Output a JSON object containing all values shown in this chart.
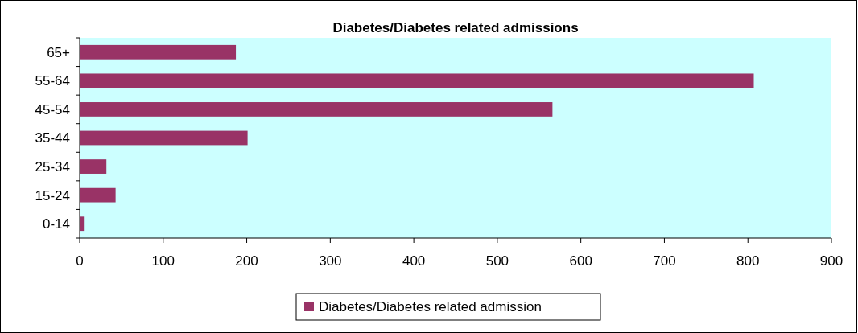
{
  "chart_data": {
    "type": "bar",
    "orientation": "horizontal",
    "title": "Diabetes/Diabetes related admissions",
    "categories": [
      "65+",
      "55-64",
      "45-54",
      "35-44",
      "25-34",
      "15-24",
      "0-14"
    ],
    "series": [
      {
        "name": "Diabetes/Diabetes related admission",
        "color": "#993366",
        "values": [
          187,
          807,
          566,
          201,
          32,
          43,
          5
        ]
      }
    ],
    "xlim": [
      0,
      900
    ],
    "xticks": [
      0,
      100,
      200,
      300,
      400,
      500,
      600,
      700,
      800,
      900
    ],
    "grid": false,
    "legend": "bottom"
  }
}
